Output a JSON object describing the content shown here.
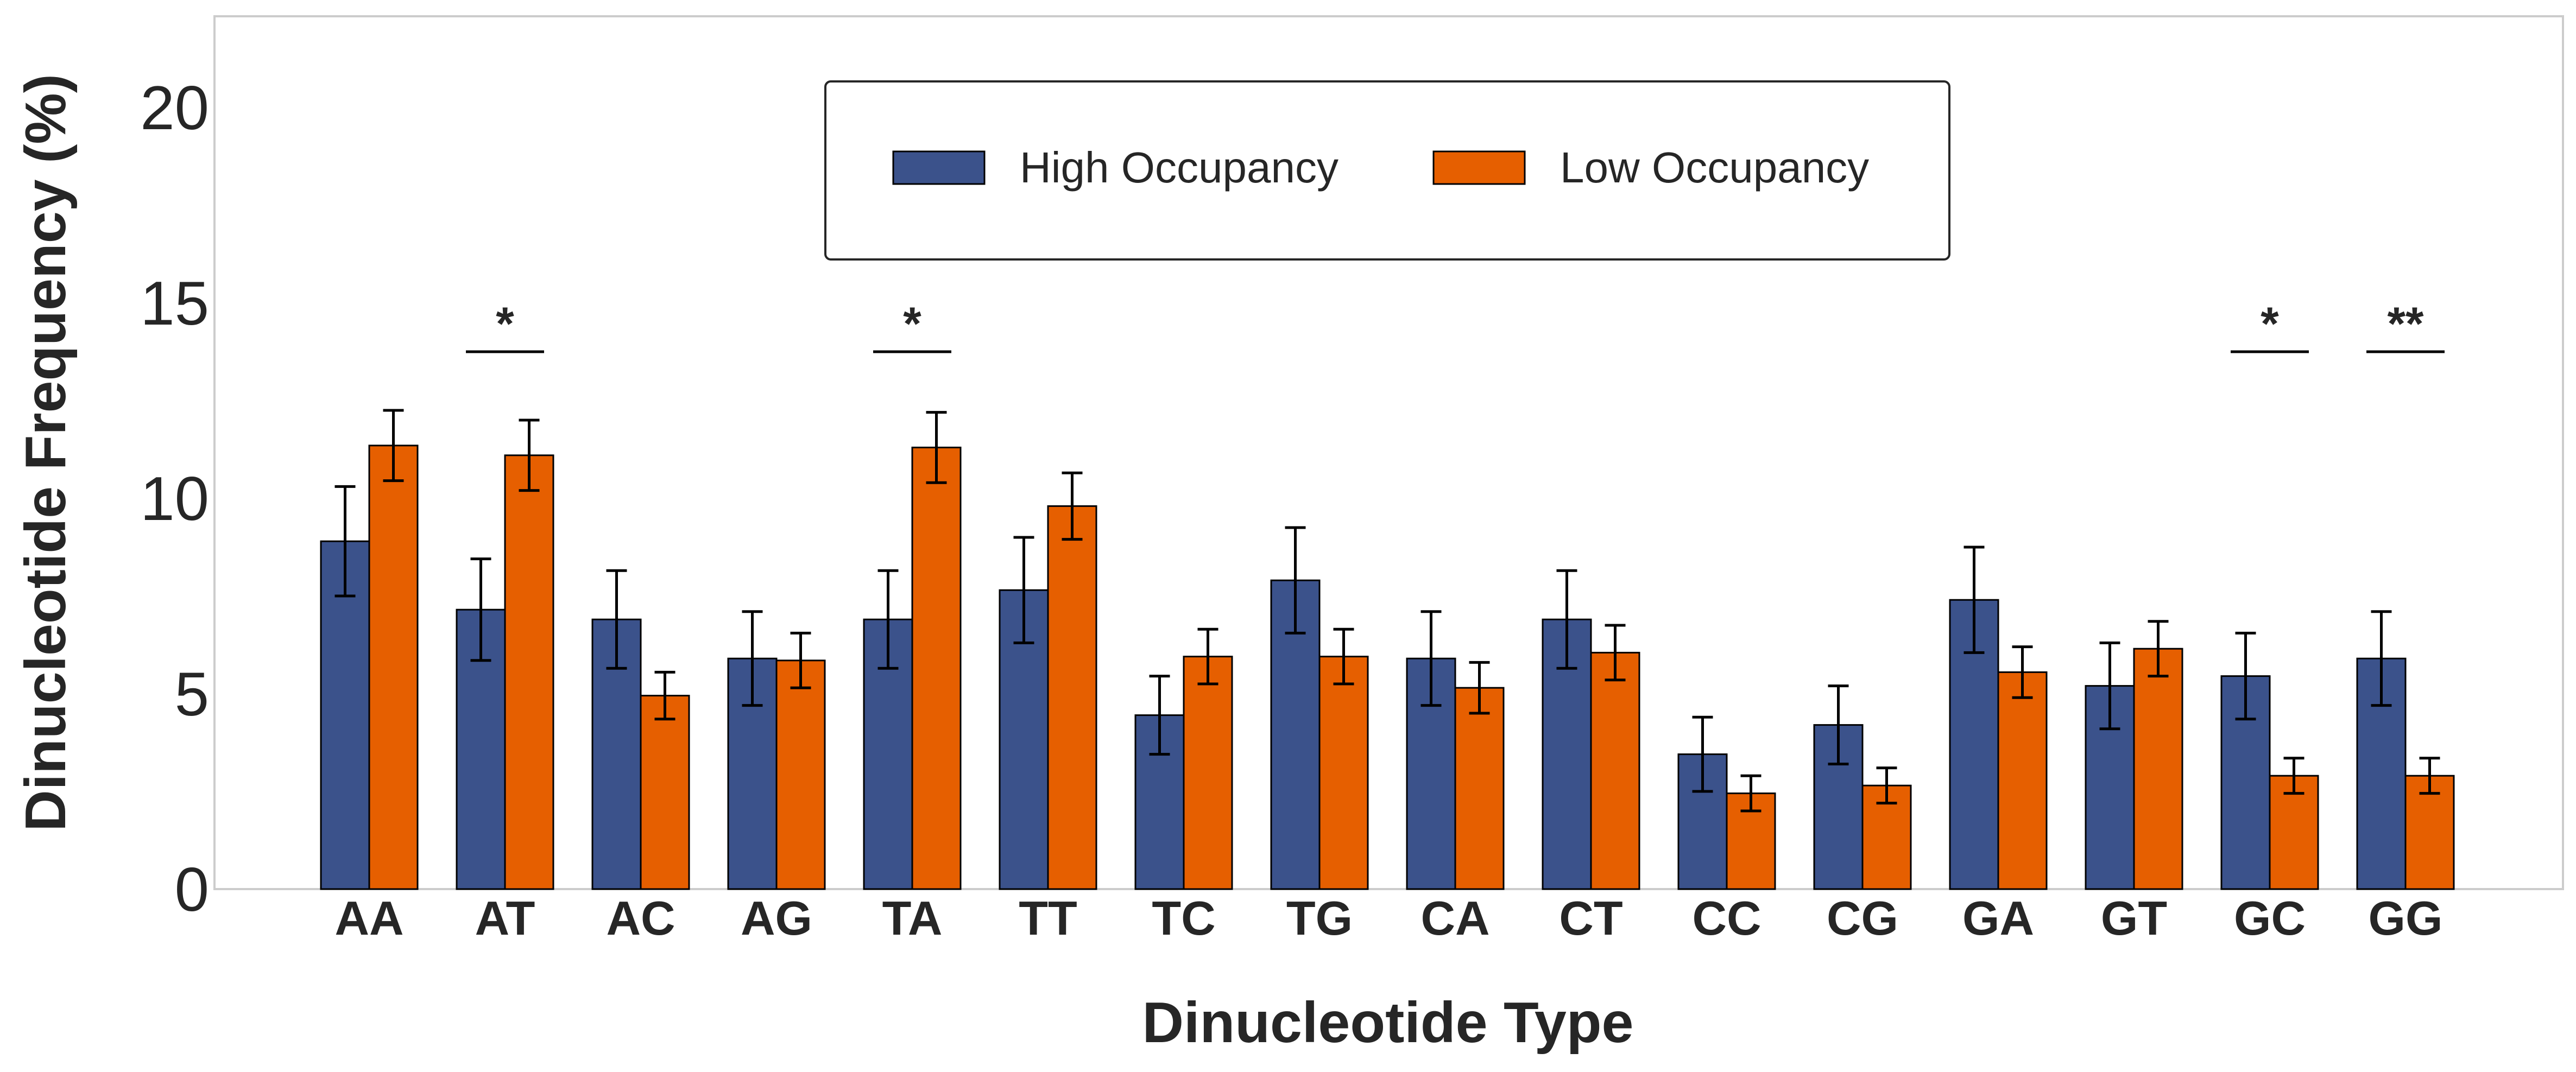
{
  "chart_data": {
    "type": "bar",
    "xlabel": "Dinucleotide Type",
    "ylabel": "Dinucleotide Frequency (%)",
    "ylim": [
      0,
      22.3
    ],
    "yticks": [
      0,
      5,
      10,
      15,
      20
    ],
    "grid": false,
    "legend": "top-center",
    "categories": [
      "AA",
      "AT",
      "AC",
      "AG",
      "TA",
      "TT",
      "TC",
      "TG",
      "CA",
      "CT",
      "CC",
      "CG",
      "GA",
      "GT",
      "GC",
      "GG"
    ],
    "series": [
      {
        "name": "High Occupancy",
        "color": "#3b528b",
        "values": [
          8.9,
          7.15,
          6.9,
          5.9,
          6.9,
          7.65,
          4.45,
          7.9,
          5.9,
          6.9,
          3.45,
          4.2,
          7.4,
          5.2,
          5.45,
          5.9
        ],
        "errors": [
          1.4,
          1.3,
          1.25,
          1.2,
          1.25,
          1.35,
          1.0,
          1.35,
          1.2,
          1.25,
          0.95,
          1.0,
          1.35,
          1.1,
          1.1,
          1.2
        ]
      },
      {
        "name": "Low Occupancy",
        "color": "#e65f00",
        "values": [
          11.35,
          11.1,
          4.95,
          5.85,
          11.3,
          9.8,
          5.95,
          5.95,
          5.15,
          6.05,
          2.45,
          2.65,
          5.55,
          6.15,
          2.9,
          2.9
        ],
        "errors": [
          0.9,
          0.9,
          0.6,
          0.7,
          0.9,
          0.85,
          0.7,
          0.7,
          0.65,
          0.7,
          0.45,
          0.45,
          0.65,
          0.7,
          0.45,
          0.45
        ]
      }
    ],
    "annotations": [
      {
        "category": "AT",
        "text": "*",
        "line_y": 13.75
      },
      {
        "category": "TA",
        "text": "*",
        "line_y": 13.75
      },
      {
        "category": "GC",
        "text": "*",
        "line_y": 13.75
      },
      {
        "category": "GG",
        "text": "**",
        "line_y": 13.75
      }
    ]
  }
}
